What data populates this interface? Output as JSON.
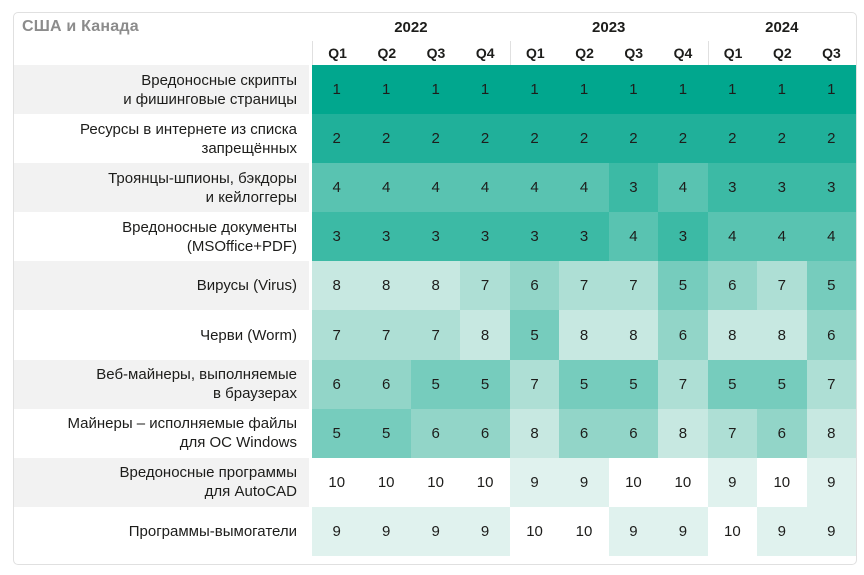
{
  "title": "США и Канада",
  "header": {
    "years": [
      {
        "label": "2022",
        "quarters": [
          "Q1",
          "Q2",
          "Q3",
          "Q4"
        ]
      },
      {
        "label": "2023",
        "quarters": [
          "Q1",
          "Q2",
          "Q3",
          "Q4"
        ]
      },
      {
        "label": "2024",
        "quarters": [
          "Q1",
          "Q2",
          "Q3"
        ]
      }
    ]
  },
  "chart_data": {
    "type": "heatmap",
    "title": "США и Канада",
    "columns": [
      "2022 Q1",
      "2022 Q2",
      "2022 Q3",
      "2022 Q4",
      "2023 Q1",
      "2023 Q2",
      "2023 Q3",
      "2023 Q4",
      "2024 Q1",
      "2024 Q2",
      "2024 Q3"
    ],
    "value_meaning": "rank per quarter: 1 = highest, 10 = lowest; darker teal = higher rank",
    "rows": [
      {
        "label_lines": [
          "Вредоносные скрипты",
          "и фишинговые страницы"
        ],
        "values": [
          1,
          1,
          1,
          1,
          1,
          1,
          1,
          1,
          1,
          1,
          1
        ]
      },
      {
        "label_lines": [
          "Ресурсы в интернете из списка",
          "запрещённых"
        ],
        "values": [
          2,
          2,
          2,
          2,
          2,
          2,
          2,
          2,
          2,
          2,
          2
        ]
      },
      {
        "label_lines": [
          "Троянцы-шпионы, бэкдоры",
          "и кейлоггеры"
        ],
        "values": [
          4,
          4,
          4,
          4,
          4,
          4,
          3,
          4,
          3,
          3,
          3
        ]
      },
      {
        "label_lines": [
          "Вредоносные документы",
          "(MSOffice+PDF)"
        ],
        "values": [
          3,
          3,
          3,
          3,
          3,
          3,
          4,
          3,
          4,
          4,
          4
        ]
      },
      {
        "label_lines": [
          "Вирусы (Virus)"
        ],
        "values": [
          8,
          8,
          8,
          7,
          6,
          7,
          7,
          5,
          6,
          7,
          5
        ]
      },
      {
        "label_lines": [
          "Черви (Worm)"
        ],
        "values": [
          7,
          7,
          7,
          8,
          5,
          8,
          8,
          6,
          8,
          8,
          6
        ]
      },
      {
        "label_lines": [
          "Веб-майнеры, выполняемые",
          "в браузерах"
        ],
        "values": [
          6,
          6,
          5,
          5,
          7,
          5,
          5,
          7,
          5,
          5,
          7
        ]
      },
      {
        "label_lines": [
          "Майнеры – исполняемые файлы",
          "для ОС Windows"
        ],
        "values": [
          5,
          5,
          6,
          6,
          8,
          6,
          6,
          8,
          7,
          6,
          8
        ]
      },
      {
        "label_lines": [
          "Вредоносные программы",
          "для AutoCAD"
        ],
        "values": [
          10,
          10,
          10,
          10,
          9,
          9,
          10,
          10,
          9,
          10,
          9
        ]
      },
      {
        "label_lines": [
          "Программы-вымогатели"
        ],
        "values": [
          9,
          9,
          9,
          9,
          10,
          10,
          9,
          9,
          10,
          9,
          9
        ]
      }
    ],
    "rank_colors": {
      "1": "#01a78e",
      "2": "#20b09a",
      "3": "#3cbaa5",
      "4": "#59c3b1",
      "5": "#76ccbd",
      "6": "#92d5c8",
      "7": "#aedfd5",
      "8": "#c7e8e1",
      "9": "#e0f2ee",
      "10": "#ffffff"
    }
  },
  "colors": {
    "background": "#ffffff",
    "card_border": "#e0e0e0",
    "header_separator": "#e0e0e0",
    "title_text": "#8c8c8c",
    "label_text": "#1d1d1b",
    "cell_text": "#1d1d1b",
    "row_alt_bg": "#f2f2f2"
  }
}
